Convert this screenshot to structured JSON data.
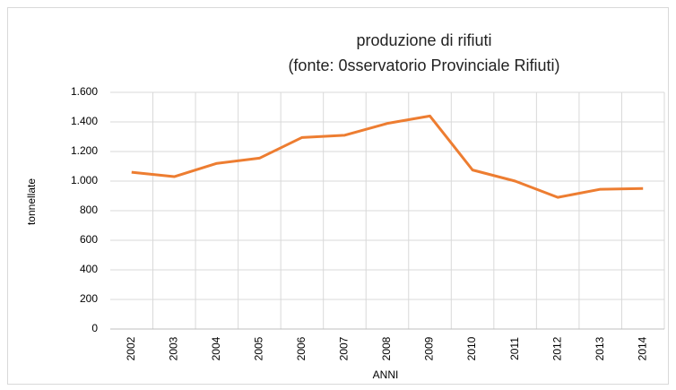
{
  "chart_data": {
    "type": "line",
    "title": "produzione di rifiuti",
    "subtitle": "(fonte: 0sservatorio Provinciale Rifiuti)",
    "y_label": "tonnellate",
    "x_label": "ANNI",
    "categories": [
      "2002",
      "2003",
      "2004",
      "2005",
      "2006",
      "2007",
      "2008",
      "2009",
      "2010",
      "2011",
      "2012",
      "2013",
      "2014"
    ],
    "series": [
      {
        "name": "produzione di rifiuti",
        "color": "#ED7D31",
        "values": [
          1060,
          1030,
          1120,
          1155,
          1295,
          1310,
          1390,
          1440,
          1075,
          1000,
          890,
          945,
          950
        ]
      }
    ],
    "ylim": [
      0,
      1600
    ],
    "yticks": [
      0,
      200,
      400,
      600,
      800,
      {
        "value": 1000,
        "label": "1.000"
      },
      {
        "value": 1200,
        "label": "1.200"
      },
      {
        "value": 1400,
        "label": "1.400"
      },
      {
        "value": 1600,
        "label": "1.600"
      }
    ],
    "grid": true,
    "legend": false
  }
}
